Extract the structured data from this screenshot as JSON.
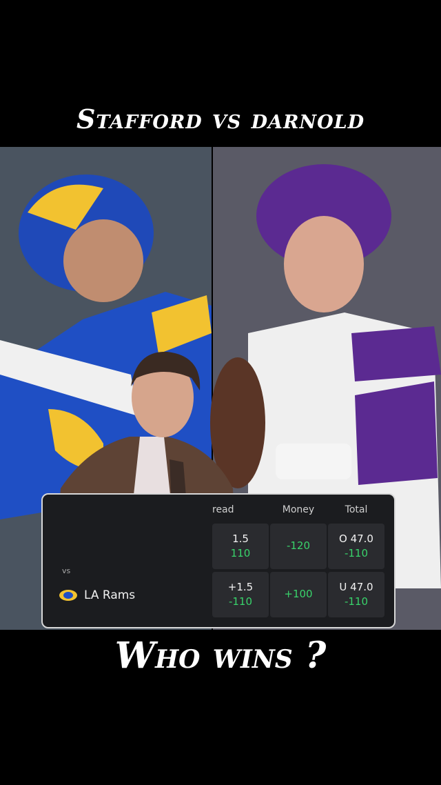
{
  "title": "Stafford vs darnold",
  "odds": {
    "headers": [
      "read",
      "Money",
      "Total"
    ],
    "vs": "vs",
    "rows": [
      {
        "spread": {
          "line": "1.5",
          "price": "110"
        },
        "money": "-120",
        "total": {
          "line": "O 47.0",
          "price": "-110"
        }
      },
      {
        "team": "LA Rams",
        "spread": {
          "line": "+1.5",
          "price": "-110"
        },
        "money": "+100",
        "total": {
          "line": "U 47.0",
          "price": "-110"
        }
      }
    ]
  },
  "caption": "Who wins ?"
}
